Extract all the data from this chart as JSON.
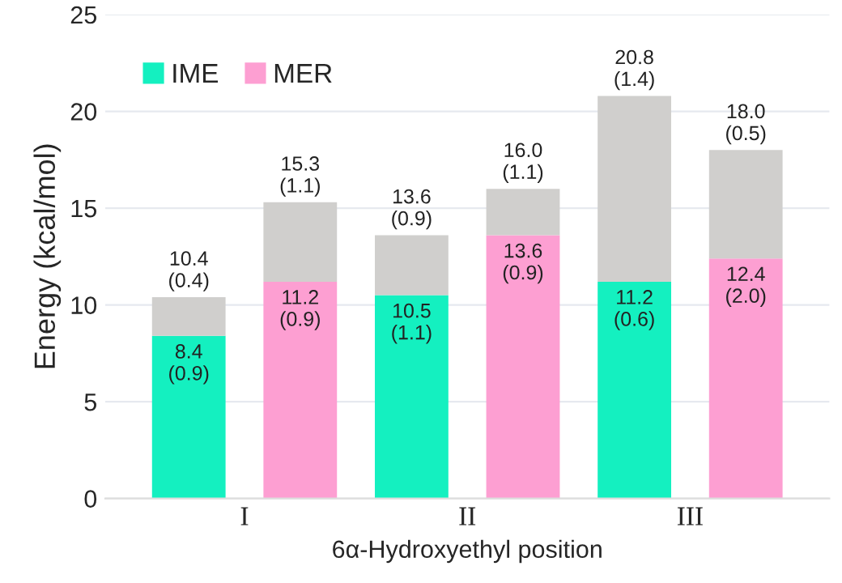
{
  "chart_data": {
    "type": "bar",
    "xlabel": "6α-Hydroxyethyl position",
    "ylabel": "Energy (kcal/mol)",
    "categories": [
      "I",
      null,
      "II",
      null,
      "III",
      null
    ],
    "stacked": true,
    "series": [
      {
        "name": "IME",
        "color": "#14f0c0",
        "values": [
          8.4,
          null,
          10.5,
          null,
          11.2,
          null
        ],
        "value_labels": [
          "8.4\n(0.9)",
          null,
          "10.5\n(1.1)",
          null,
          "11.2\n(0.6)",
          null
        ]
      },
      {
        "name": "MER",
        "color": "#fd9fd2",
        "values": [
          null,
          11.2,
          null,
          13.6,
          null,
          12.4
        ],
        "value_labels": [
          null,
          "11.2\n(0.9)",
          null,
          "13.6\n(0.9)",
          null,
          "12.4\n(2.0)"
        ]
      },
      {
        "color": "#d0cfcd",
        "values": [
          2.0,
          4.1,
          3.1,
          2.4,
          9.6,
          5.6
        ]
      }
    ],
    "totals": [
      "10.4\n(0.4)",
      "15.3\n(1.1)",
      "13.6\n(0.9)",
      "16.0\n(1.1)",
      "20.8\n(1.4)",
      "18.0\n(0.5)"
    ],
    "ylim": [
      0,
      25
    ],
    "yticks": [
      0,
      5,
      10,
      15,
      20,
      25
    ],
    "grid": "y",
    "legend": "top left"
  }
}
